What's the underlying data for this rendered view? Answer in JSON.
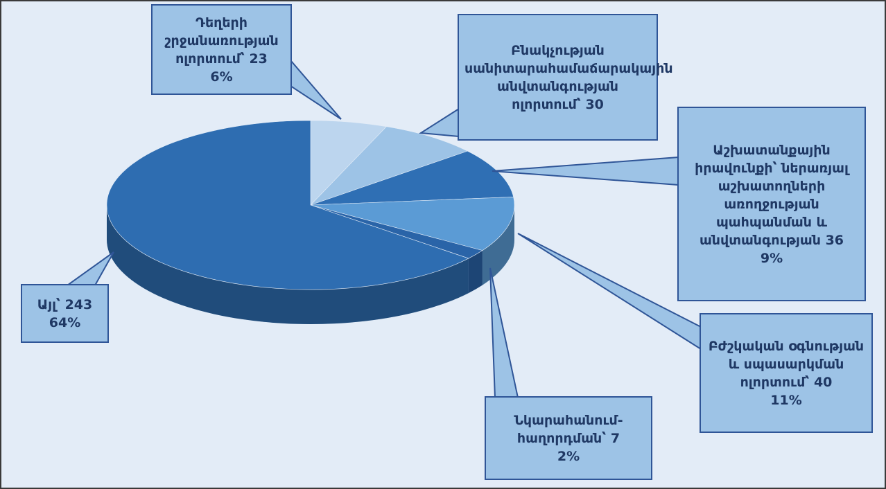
{
  "chart_data": {
    "type": "pie3d",
    "categories": [
      "Դեղերի շրջանառության ոլորտում՝",
      "Բնակչության սանիտարահամաճարակային անվտանգության ոլորտում՝",
      "Աշխատանքային իրավունքի՝ ներառյալ աշխատողների առողջության պահպանման և անվտանգության",
      "Բժշկական օգնության և սպասարկման ոլորտում՝",
      "Նկարահանում-հաղորդման՝",
      "Այլ՝"
    ],
    "values": [
      23,
      30,
      36,
      40,
      7,
      243
    ],
    "percent_labels": [
      "6%",
      null,
      "9%",
      "11%",
      "2%",
      "64%"
    ],
    "colors": [
      "#bcd5ee",
      "#9dc3e6",
      "#2f6fb4",
      "#5b9bd5",
      "#2a64a8",
      "#2e6db1"
    ]
  }
}
